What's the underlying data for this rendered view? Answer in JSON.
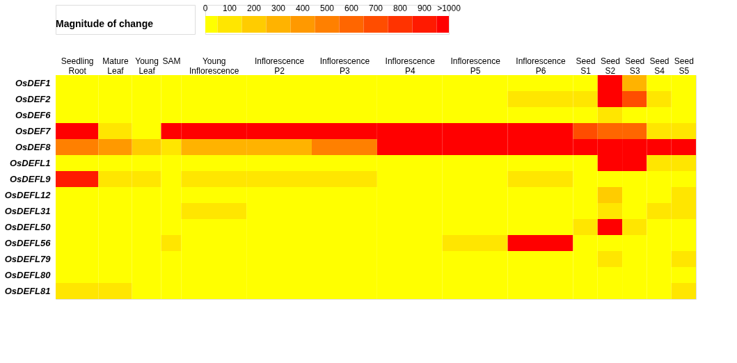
{
  "chart_data": {
    "type": "heatmap",
    "clabel": "Magnitude of change",
    "categories": [
      "Seedling Root",
      "Mature Leaf",
      "Young Leaf",
      "SAM",
      "Young Inflorescence",
      "Inflorescence P2",
      "Inflorescence P3",
      "Inflorescence P4",
      "Inflorescence P5",
      "Inflorescence P6",
      "Seed S1",
      "Seed S2",
      "Seed S3",
      "Seed S4",
      "Seed S5"
    ],
    "y_categories": [
      "OsDEF1",
      "OsDEF2",
      "OsDEF6",
      "OsDEF7",
      "OsDEF8",
      "OsDEFL1",
      "OsDEFL9",
      "OsDEFL12",
      "OsDEFL31",
      "OsDEFL50",
      "OsDEFL56",
      "OsDEFL79",
      "OsDEFL80",
      "OsDEFL81"
    ],
    "cells": [
      [
        0,
        0,
        0,
        0,
        0,
        0,
        0,
        0,
        0,
        0,
        0,
        1000,
        300,
        0,
        0
      ],
      [
        0,
        0,
        0,
        0,
        0,
        0,
        0,
        0,
        0,
        100,
        100,
        1000,
        700,
        100,
        0
      ],
      [
        0,
        0,
        0,
        0,
        0,
        0,
        0,
        0,
        0,
        0,
        0,
        100,
        0,
        0,
        0
      ],
      [
        1000,
        100,
        0,
        1000,
        1000,
        1000,
        1000,
        1000,
        1000,
        1000,
        700,
        600,
        600,
        100,
        100
      ],
      [
        500,
        400,
        200,
        100,
        300,
        300,
        500,
        1000,
        1000,
        1000,
        1000,
        1000,
        1000,
        1000,
        1000
      ],
      [
        0,
        0,
        0,
        0,
        0,
        0,
        0,
        0,
        0,
        0,
        0,
        1000,
        1000,
        100,
        100
      ],
      [
        900,
        100,
        100,
        0,
        100,
        100,
        100,
        0,
        0,
        100,
        0,
        0,
        0,
        0,
        0
      ],
      [
        0,
        0,
        0,
        0,
        0,
        0,
        0,
        0,
        0,
        0,
        0,
        200,
        0,
        0,
        100
      ],
      [
        0,
        0,
        0,
        0,
        100,
        0,
        0,
        0,
        0,
        0,
        0,
        100,
        0,
        100,
        100
      ],
      [
        0,
        0,
        0,
        0,
        0,
        0,
        0,
        0,
        0,
        0,
        100,
        1000,
        100,
        0,
        0
      ],
      [
        0,
        0,
        0,
        100,
        0,
        0,
        0,
        0,
        100,
        1000,
        0,
        0,
        0,
        0,
        0
      ],
      [
        0,
        0,
        0,
        0,
        0,
        0,
        0,
        0,
        0,
        0,
        0,
        100,
        0,
        0,
        100
      ],
      [
        0,
        0,
        0,
        0,
        0,
        0,
        0,
        0,
        0,
        0,
        0,
        0,
        0,
        0,
        0
      ],
      [
        100,
        100,
        0,
        0,
        0,
        0,
        0,
        0,
        0,
        0,
        0,
        0,
        0,
        0,
        100
      ]
    ],
    "clim": [
      0,
      1000
    ],
    "cticks": [
      0,
      100,
      200,
      300,
      400,
      500,
      600,
      700,
      800,
      900,
      {
        "value": 1000,
        "label": ">1000"
      }
    ]
  }
}
